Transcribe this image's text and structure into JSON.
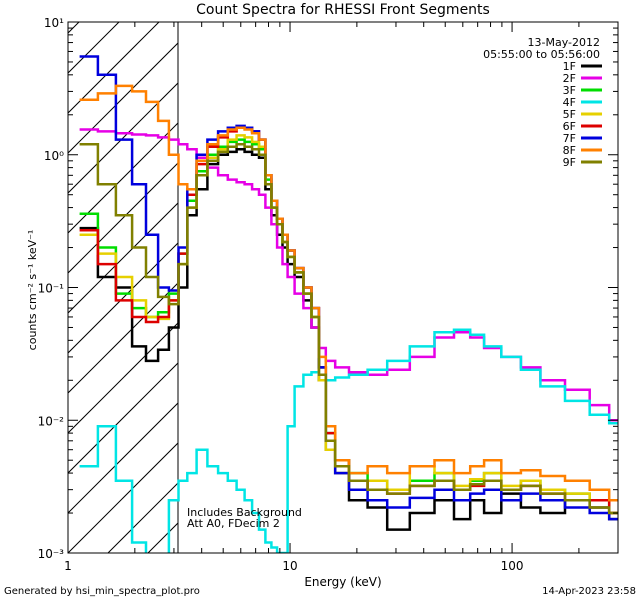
{
  "chart_data": {
    "type": "line",
    "title": "Count Spectra for RHESSI Front Segments",
    "xlabel": "Energy (keV)",
    "ylabel": "counts cm⁻² s⁻¹ keV⁻¹",
    "x_scale": "log",
    "y_scale": "log",
    "xlim": [
      1,
      300
    ],
    "ylim": [
      0.001,
      10
    ],
    "x_ticks": [
      {
        "value": 1,
        "label": "1"
      },
      {
        "value": 10,
        "label": "10"
      },
      {
        "value": 100,
        "label": "100"
      }
    ],
    "y_ticks": [
      {
        "value": 0.001,
        "label": "10⁻³"
      },
      {
        "value": 0.01,
        "label": "10⁻²"
      },
      {
        "value": 0.1,
        "label": "10⁻¹"
      },
      {
        "value": 1,
        "label": "10⁰"
      },
      {
        "value": 10,
        "label": "10¹"
      }
    ],
    "info_lines": [
      "13-May-2012",
      "05:55:00 to 05:56:00"
    ],
    "annotations": [
      "Includes Background",
      "Att A0, FDecim 2"
    ],
    "excluded_region_keV": [
      1,
      3
    ],
    "footer_left": "Generated by hsi_min_spectra_plot.pro",
    "footer_right": "14-Apr-2023 23:58",
    "x": [
      1.24,
      1.5,
      1.8,
      2.1,
      2.4,
      2.7,
      3.0,
      3.3,
      3.6,
      4.0,
      4.5,
      5.0,
      5.5,
      6.0,
      6.5,
      7.0,
      7.5,
      8.0,
      8.5,
      9.0,
      9.5,
      10,
      11,
      12,
      13,
      14,
      15,
      17,
      20,
      25,
      30,
      40,
      50,
      60,
      70,
      80,
      100,
      120,
      150,
      200,
      250,
      300
    ],
    "series": [
      {
        "name": "1F",
        "color": "#000000",
        "values": [
          0.28,
          0.12,
          0.1,
          0.036,
          0.028,
          0.034,
          0.05,
          0.1,
          0.35,
          0.55,
          0.85,
          1.0,
          1.05,
          1.1,
          1.05,
          1.0,
          0.95,
          0.55,
          0.35,
          0.25,
          0.2,
          0.15,
          0.12,
          0.08,
          0.05,
          0.02,
          0.006,
          0.004,
          0.0025,
          0.0022,
          0.0015,
          0.002,
          0.0025,
          0.0018,
          0.0025,
          0.002,
          0.0028,
          0.0022,
          0.002,
          0.0025,
          0.0022,
          0.0018
        ]
      },
      {
        "name": "2F",
        "color": "#e600e6",
        "values": [
          1.55,
          1.5,
          1.45,
          1.42,
          1.4,
          1.35,
          1.3,
          1.2,
          1.1,
          0.95,
          0.8,
          0.7,
          0.65,
          0.62,
          0.6,
          0.55,
          0.5,
          0.4,
          0.3,
          0.2,
          0.15,
          0.12,
          0.09,
          0.07,
          0.05,
          0.035,
          0.028,
          0.025,
          0.023,
          0.022,
          0.024,
          0.03,
          0.042,
          0.046,
          0.042,
          0.035,
          0.03,
          0.025,
          0.02,
          0.017,
          0.013,
          0.01
        ]
      },
      {
        "name": "3F",
        "color": "#00dd00",
        "values": [
          0.36,
          0.2,
          0.09,
          0.07,
          0.06,
          0.065,
          0.09,
          0.18,
          0.45,
          0.75,
          1.0,
          1.15,
          1.25,
          1.3,
          1.25,
          1.2,
          1.1,
          0.65,
          0.4,
          0.3,
          0.22,
          0.17,
          0.13,
          0.09,
          0.06,
          0.025,
          0.008,
          0.005,
          0.004,
          0.0035,
          0.003,
          0.0035,
          0.004,
          0.003,
          0.0035,
          0.004,
          0.003,
          0.0035,
          0.003,
          0.0028,
          0.0025,
          0.002
        ]
      },
      {
        "name": "4F",
        "color": "#00e5e5",
        "values": [
          0.0045,
          0.009,
          0.0035,
          0.0012,
          0.0009,
          0.0008,
          0.0025,
          0.0035,
          0.004,
          0.006,
          0.0045,
          0.004,
          0.0035,
          0.003,
          0.0025,
          0.002,
          0.0015,
          0.0012,
          0.0011,
          0.001,
          0.001,
          0.009,
          0.018,
          0.022,
          0.023,
          0.022,
          0.02,
          0.021,
          0.022,
          0.024,
          0.028,
          0.036,
          0.046,
          0.048,
          0.044,
          0.036,
          0.03,
          0.024,
          0.018,
          0.014,
          0.011,
          0.0095
        ]
      },
      {
        "name": "5F",
        "color": "#e6d000",
        "values": [
          0.25,
          0.18,
          0.12,
          0.08,
          0.06,
          0.058,
          0.08,
          0.15,
          0.4,
          0.7,
          0.95,
          1.1,
          1.3,
          1.4,
          1.35,
          1.25,
          1.15,
          0.6,
          0.4,
          0.3,
          0.22,
          0.17,
          0.13,
          0.09,
          0.06,
          0.02,
          0.006,
          0.004,
          0.003,
          0.0035,
          0.003,
          0.0045,
          0.004,
          0.0032,
          0.0036,
          0.004,
          0.0032,
          0.0035,
          0.003,
          0.0028,
          0.0025,
          0.002
        ]
      },
      {
        "name": "6F",
        "color": "#dd0000",
        "values": [
          0.27,
          0.15,
          0.08,
          0.06,
          0.055,
          0.06,
          0.08,
          0.18,
          0.5,
          0.85,
          1.15,
          1.35,
          1.5,
          1.6,
          1.6,
          1.5,
          1.3,
          0.7,
          0.45,
          0.33,
          0.25,
          0.19,
          0.14,
          0.1,
          0.07,
          0.025,
          0.008,
          0.005,
          0.0035,
          0.003,
          0.0028,
          0.0032,
          0.0035,
          0.003,
          0.0032,
          0.0035,
          0.003,
          0.0032,
          0.0028,
          0.0025,
          0.0025,
          0.002
        ]
      },
      {
        "name": "7F",
        "color": "#0000dd",
        "values": [
          5.5,
          4.0,
          1.3,
          0.6,
          0.25,
          0.1,
          0.095,
          0.2,
          0.55,
          1.0,
          1.3,
          1.5,
          1.6,
          1.65,
          1.6,
          1.5,
          1.3,
          0.7,
          0.45,
          0.33,
          0.25,
          0.19,
          0.14,
          0.1,
          0.07,
          0.025,
          0.007,
          0.004,
          0.003,
          0.0025,
          0.0022,
          0.0026,
          0.003,
          0.0025,
          0.0028,
          0.003,
          0.0025,
          0.0028,
          0.0025,
          0.0022,
          0.002,
          0.0018
        ]
      },
      {
        "name": "8F",
        "color": "#ff8000",
        "values": [
          2.6,
          2.9,
          3.3,
          3.0,
          2.5,
          1.8,
          1.0,
          0.6,
          0.55,
          0.9,
          1.2,
          1.4,
          1.55,
          1.6,
          1.55,
          1.45,
          1.3,
          0.7,
          0.45,
          0.33,
          0.25,
          0.19,
          0.14,
          0.1,
          0.07,
          0.03,
          0.009,
          0.005,
          0.004,
          0.0045,
          0.004,
          0.0045,
          0.005,
          0.004,
          0.0045,
          0.005,
          0.004,
          0.0042,
          0.0038,
          0.0035,
          0.003,
          0.0025
        ]
      },
      {
        "name": "9F",
        "color": "#808000",
        "values": [
          1.2,
          0.6,
          0.35,
          0.2,
          0.12,
          0.085,
          0.075,
          0.15,
          0.4,
          0.7,
          0.9,
          1.05,
          1.15,
          1.2,
          1.15,
          1.1,
          1.0,
          0.6,
          0.4,
          0.3,
          0.22,
          0.17,
          0.13,
          0.09,
          0.06,
          0.022,
          0.007,
          0.0045,
          0.0035,
          0.003,
          0.0028,
          0.0032,
          0.0035,
          0.003,
          0.0033,
          0.0035,
          0.003,
          0.0032,
          0.0028,
          0.0025,
          0.0022,
          0.002
        ]
      }
    ]
  }
}
